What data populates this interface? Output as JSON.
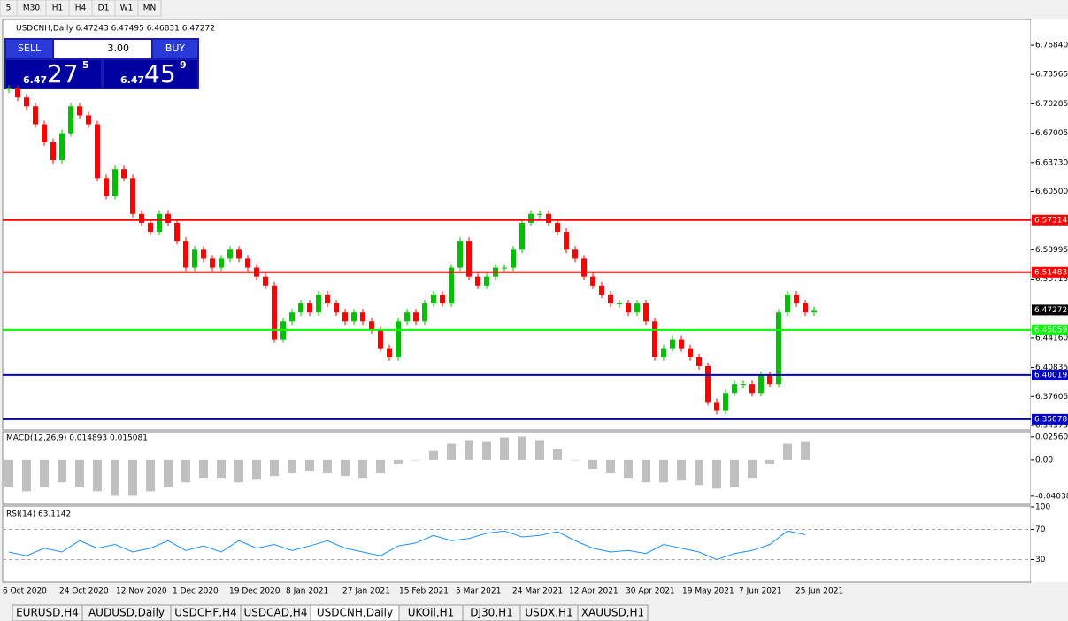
{
  "toolbar": [
    "5",
    "M30",
    "H1",
    "H4",
    "D1",
    "W1",
    "MN"
  ],
  "symbol_info": "USDCNH,Daily  6.47243 6.47495 6.46831 6.47272",
  "trade_panel": {
    "sell": "SELL",
    "lot": "3.00",
    "buy": "BUY",
    "bid_prefix": "6.47",
    "bid_big": "27",
    "bid_sup": "5",
    "ask_prefix": "6.47",
    "ask_big": "45",
    "ask_sup": "9"
  },
  "chart_data": {
    "type": "candlestick",
    "closes": [
      6.72,
      6.71,
      6.7,
      6.68,
      6.66,
      6.64,
      6.67,
      6.7,
      6.69,
      6.68,
      6.62,
      6.6,
      6.63,
      6.62,
      6.58,
      6.57,
      6.56,
      6.58,
      6.57,
      6.55,
      6.52,
      6.54,
      6.53,
      6.52,
      6.53,
      6.54,
      6.53,
      6.52,
      6.51,
      6.5,
      6.44,
      6.46,
      6.47,
      6.48,
      6.47,
      6.49,
      6.48,
      6.47,
      6.46,
      6.47,
      6.46,
      6.45,
      6.43,
      6.42,
      6.46,
      6.47,
      6.46,
      6.48,
      6.49,
      6.48,
      6.52,
      6.55,
      6.51,
      6.5,
      6.51,
      6.52,
      6.52,
      6.54,
      6.57,
      6.58,
      6.58,
      6.57,
      6.56,
      6.54,
      6.53,
      6.51,
      6.5,
      6.49,
      6.48,
      6.48,
      6.47,
      6.48,
      6.46,
      6.42,
      6.43,
      6.44,
      6.43,
      6.42,
      6.41,
      6.37,
      6.36,
      6.38,
      6.39,
      6.39,
      6.38,
      6.4,
      6.39,
      6.47,
      6.49,
      6.48,
      6.47,
      6.47272
    ],
    "up_color": "#00c000",
    "down_color": "#ff0000",
    "ylim": [
      6.33979,
      6.79612
    ],
    "yticks": [
      {
        "value": 6.7684,
        "label": "6.76840"
      },
      6.73565,
      6.70285,
      6.67005,
      {
        "value": 6.6373,
        "label": "6.63730"
      },
      {
        "value": 6.605,
        "label": "6.60500"
      },
      6.53995,
      6.50715,
      {
        "value": 6.4416,
        "label": "6.44160"
      },
      6.40835,
      6.37605,
      6.34375
    ],
    "levels": [
      {
        "value": 6.57314,
        "color": "#ff0000"
      },
      {
        "value": 6.51483,
        "color": "#ff0000"
      },
      {
        "value": 6.45059,
        "color": "#00ff00"
      },
      {
        "value": 6.40019,
        "color": "#0000c0"
      },
      {
        "value": 6.35078,
        "color": "#0000c0"
      }
    ],
    "current": 6.47272,
    "dates": [
      "6 Oct 2020",
      "24 Oct 2020",
      "12 Nov 2020",
      "1 Dec 2020",
      "19 Dec 2020",
      "8 Jan 2021",
      "27 Jan 2021",
      "15 Feb 2021",
      "5 Mar 2021",
      "24 Mar 2021",
      "12 Apr 2021",
      "30 Apr 2021",
      "19 May 2021",
      "7 Jun 2021",
      "25 Jun 2021"
    ]
  },
  "macd": {
    "title": "MACD(12,26,9) 0.014893 0.015081",
    "values": [
      -0.03,
      -0.035,
      -0.03,
      -0.025,
      -0.03,
      -0.035,
      -0.04,
      -0.04,
      -0.035,
      -0.03,
      -0.025,
      -0.02,
      -0.02,
      -0.025,
      -0.022,
      -0.018,
      -0.015,
      -0.012,
      -0.015,
      -0.018,
      -0.02,
      -0.015,
      -0.005,
      0.0,
      0.01,
      0.018,
      0.022,
      0.02,
      0.025,
      0.026,
      0.022,
      0.012,
      0.0,
      -0.01,
      -0.015,
      -0.02,
      -0.025,
      -0.025,
      -0.023,
      -0.028,
      -0.032,
      -0.03,
      -0.02,
      -0.005,
      0.018,
      0.02
    ],
    "ylim": [
      -0.0484,
      0.0304
    ],
    "yticks": [
      0.025609,
      {
        "value": 0,
        "label": "0.00"
      },
      -0.040386
    ]
  },
  "rsi": {
    "title": "RSI(14) 63.1142",
    "values": [
      40,
      35,
      45,
      40,
      55,
      45,
      50,
      40,
      45,
      55,
      42,
      48,
      40,
      55,
      45,
      50,
      42,
      48,
      55,
      45,
      40,
      35,
      48,
      52,
      62,
      55,
      58,
      65,
      68,
      60,
      62,
      67,
      55,
      45,
      40,
      42,
      38,
      50,
      45,
      40,
      30,
      38,
      42,
      50,
      68,
      63
    ],
    "ylim": [
      0,
      100
    ],
    "yticks": [
      100,
      70,
      30
    ],
    "levels": [
      70,
      30
    ]
  },
  "tabs": [
    "EURUSD,H4",
    "AUDUSD,Daily",
    "USDCHF,H4",
    "USDCAD,H4",
    "USDCNH,Daily",
    "UKOil,H1",
    "DJ30,H1",
    "USDX,H1",
    "XAUUSD,H1"
  ],
  "active_tab": "USDCNH,Daily"
}
